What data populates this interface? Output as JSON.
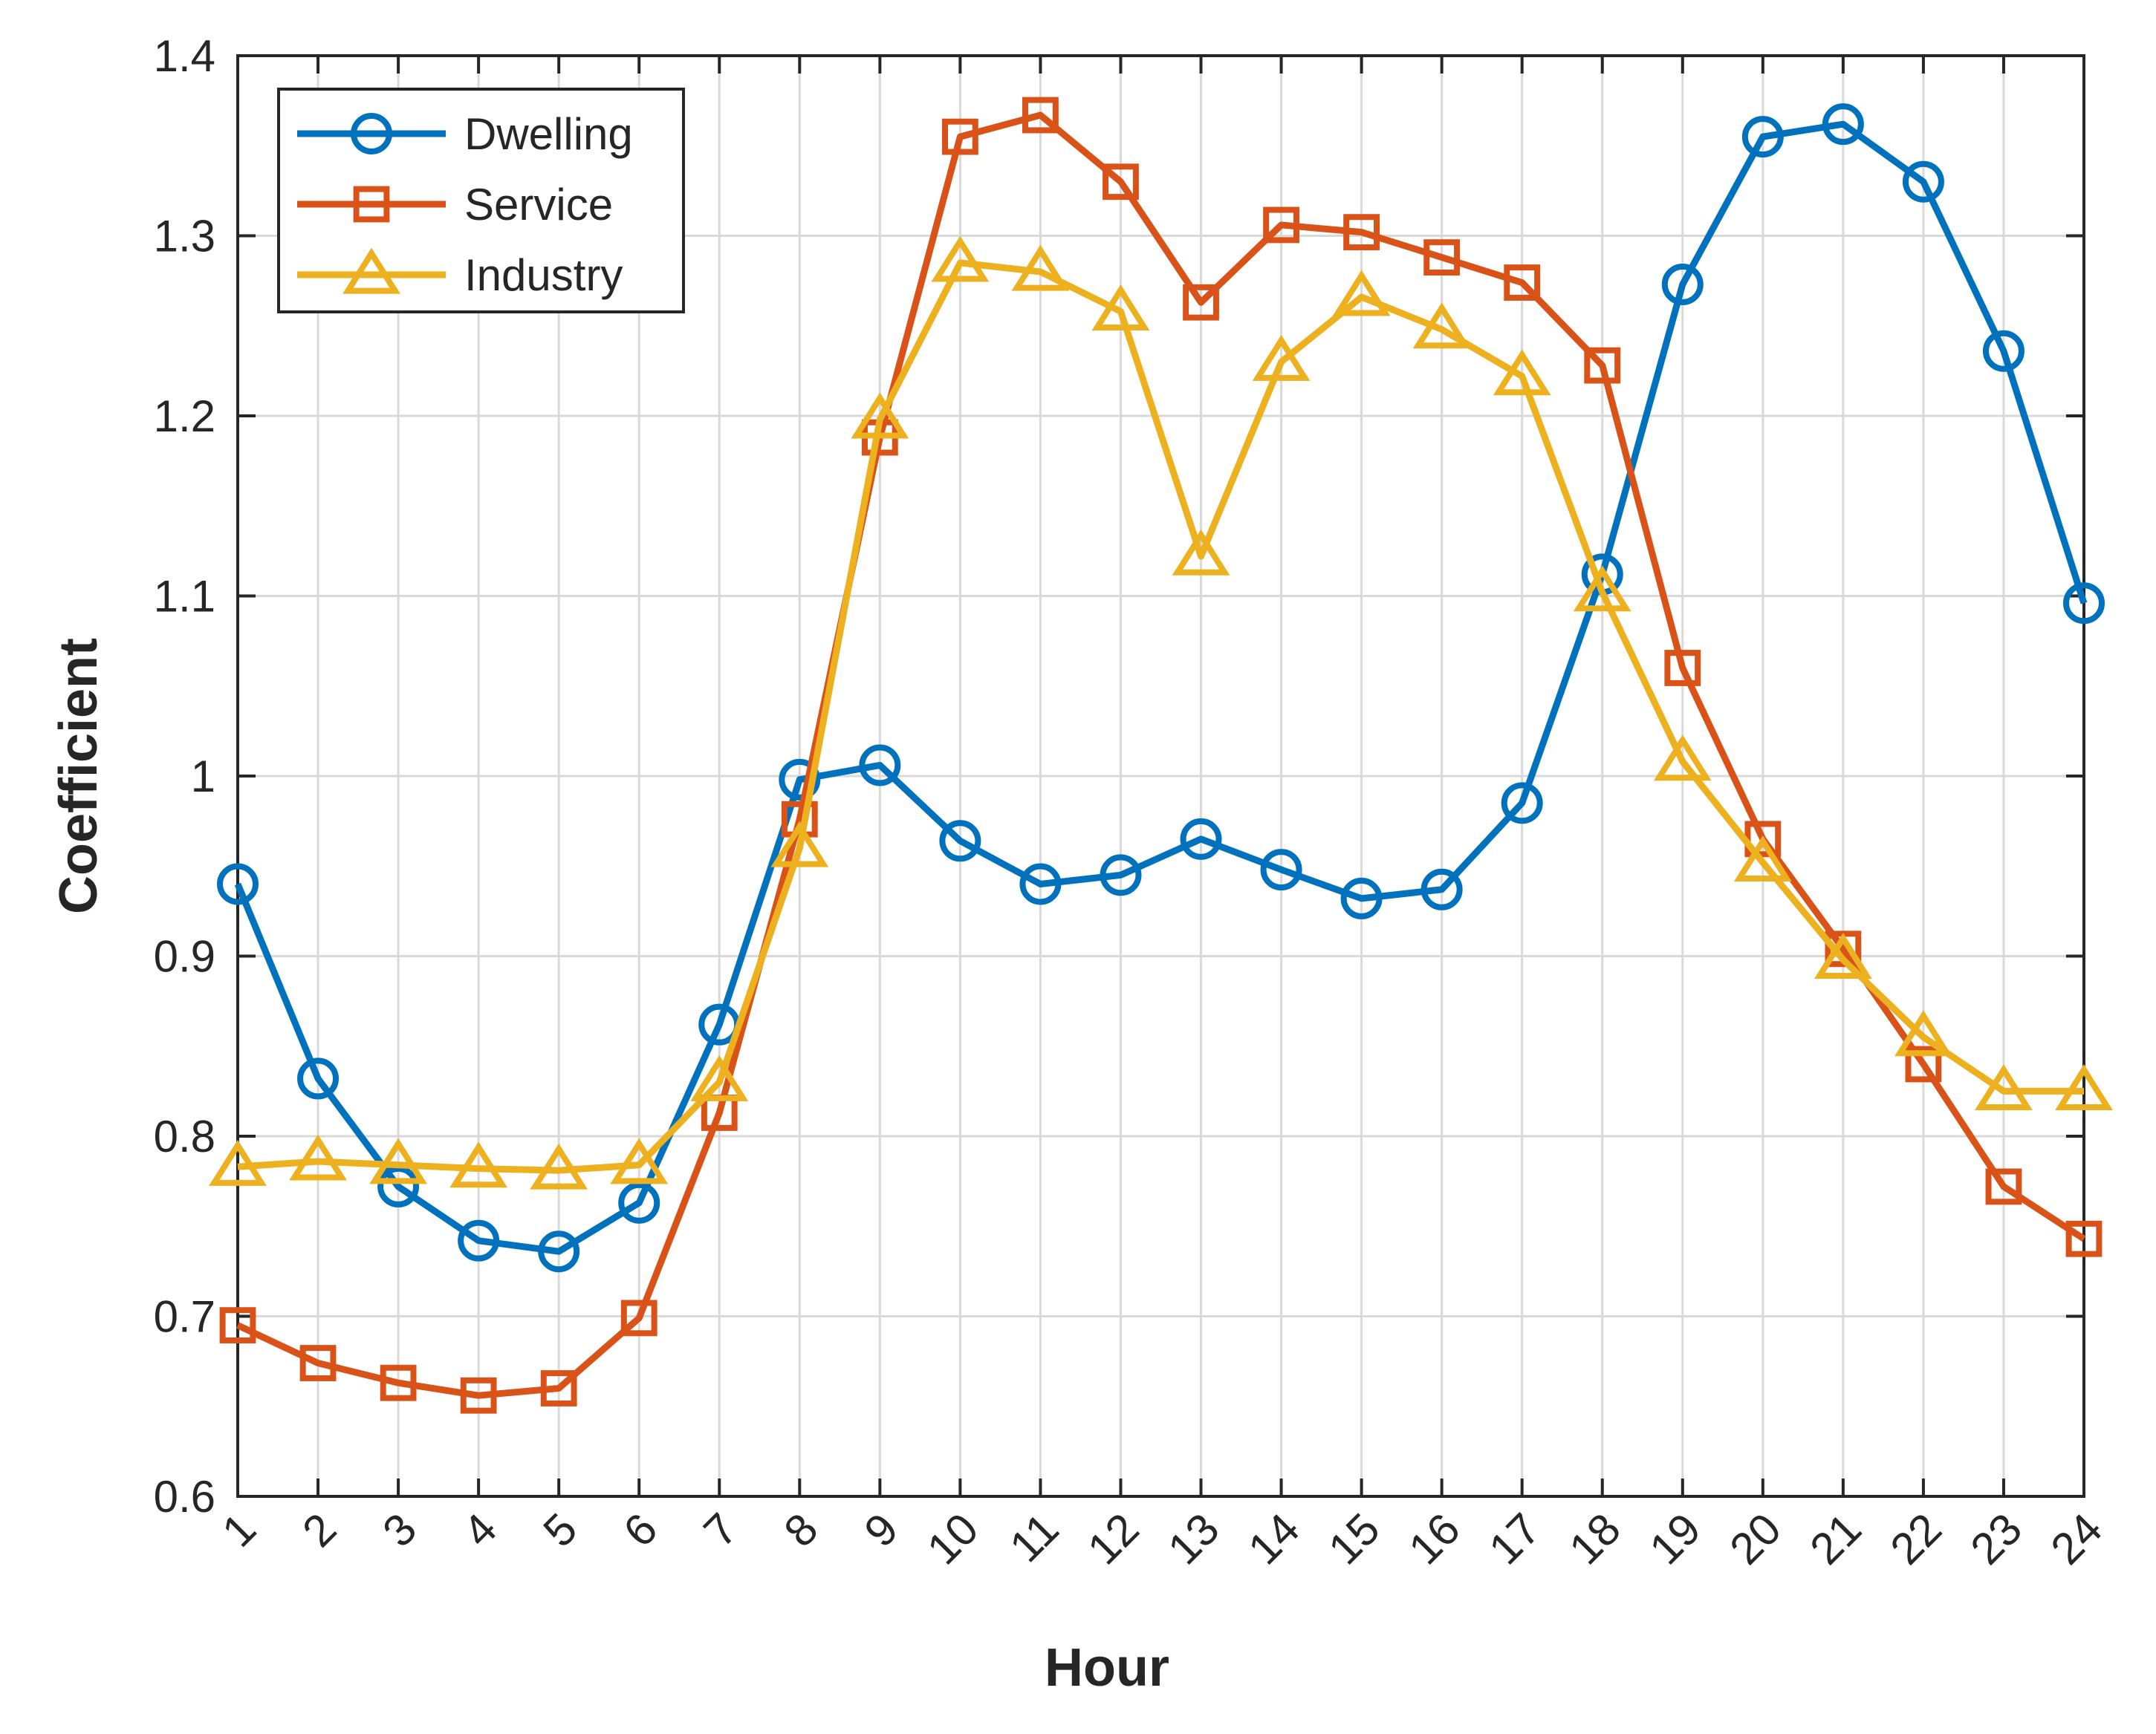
{
  "chart_data": {
    "type": "line",
    "title": "",
    "xlabel": "Hour",
    "ylabel": "Coefficient",
    "xlim": [
      1,
      24
    ],
    "ylim": [
      0.6,
      1.4
    ],
    "grid": true,
    "legend_position": "top-left",
    "x": [
      1,
      2,
      3,
      4,
      5,
      6,
      7,
      8,
      9,
      10,
      11,
      12,
      13,
      14,
      15,
      16,
      17,
      18,
      19,
      20,
      21,
      22,
      23,
      24
    ],
    "x_tick_labels": [
      "1",
      "2",
      "3",
      "4",
      "5",
      "6",
      "7",
      "8",
      "9",
      "10",
      "11",
      "12",
      "13",
      "14",
      "15",
      "16",
      "17",
      "18",
      "19",
      "20",
      "21",
      "22",
      "23",
      "24"
    ],
    "y_ticks": [
      0.6,
      0.7,
      0.8,
      0.9,
      1.0,
      1.1,
      1.2,
      1.3,
      1.4
    ],
    "y_tick_labels": [
      "0.6",
      "0.7",
      "0.8",
      "0.9",
      "1",
      "1.1",
      "1.2",
      "1.3",
      "1.4"
    ],
    "series": [
      {
        "name": "Dwelling",
        "color": "#0072BD",
        "marker": "circle",
        "values": [
          0.94,
          0.832,
          0.772,
          0.742,
          0.736,
          0.763,
          0.862,
          0.998,
          1.006,
          0.964,
          0.94,
          0.945,
          0.965,
          0.948,
          0.932,
          0.937,
          0.985,
          1.112,
          1.273,
          1.355,
          1.362,
          1.33,
          1.236,
          1.096
        ]
      },
      {
        "name": "Service",
        "color": "#D95319",
        "marker": "square",
        "values": [
          0.695,
          0.674,
          0.663,
          0.656,
          0.66,
          0.699,
          0.813,
          0.976,
          1.188,
          1.355,
          1.367,
          1.33,
          1.263,
          1.306,
          1.302,
          1.288,
          1.274,
          1.228,
          1.06,
          0.965,
          0.904,
          0.84,
          0.772,
          0.743
        ]
      },
      {
        "name": "Industry",
        "color": "#EDB120",
        "marker": "triangle",
        "values": [
          0.783,
          0.786,
          0.784,
          0.782,
          0.781,
          0.784,
          0.83,
          0.96,
          1.198,
          1.285,
          1.28,
          1.258,
          1.122,
          1.23,
          1.266,
          1.248,
          1.222,
          1.102,
          1.008,
          0.952,
          0.898,
          0.855,
          0.825,
          0.825
        ]
      }
    ]
  }
}
